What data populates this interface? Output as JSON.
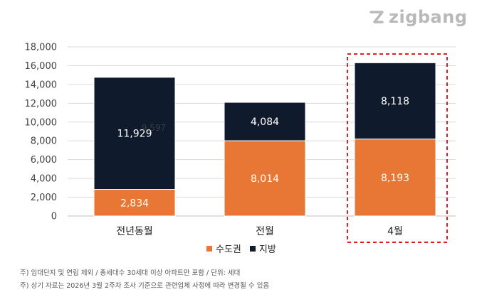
{
  "brand": {
    "name": "zigbang"
  },
  "colors": {
    "capital": "#e87634",
    "local": "#0f1a2c",
    "highlight": "#e02020"
  },
  "chart_data": {
    "type": "bar",
    "stacked": true,
    "categories": [
      "전년동월",
      "전월",
      "4월"
    ],
    "series": [
      {
        "name": "수도권",
        "values": [
          2834,
          8014,
          8193
        ],
        "labels": [
          "2,834",
          "8,014",
          "8,193"
        ]
      },
      {
        "name": "지방",
        "values": [
          11929,
          4084,
          8118
        ],
        "labels": [
          "11,929",
          "4,084",
          "8,118"
        ]
      }
    ],
    "ghost_label": "9,597",
    "ylim": [
      0,
      18000
    ],
    "yticks": [
      "0",
      "2,000",
      "4,000",
      "6,000",
      "8,000",
      "10,000",
      "12,000",
      "14,000",
      "16,000",
      "18,000"
    ],
    "grid": true,
    "legend": "bottom-center",
    "highlighted_category": "4월"
  },
  "notes": [
    "주) 임대단지 및 연립 제외 / 총세대수 30세대 이상 아파트만 포함 / 단위: 세대",
    "주) 상기 자료는 2026년 3월 2주차 조사 기준으로 관련업체 사정에 따라 변경될 수 있음"
  ]
}
